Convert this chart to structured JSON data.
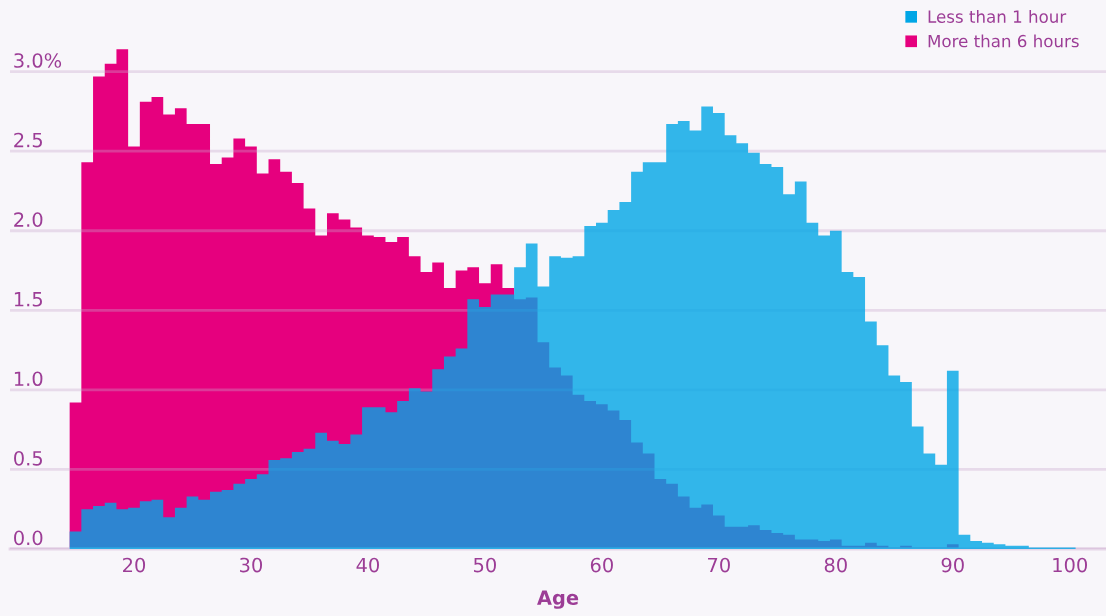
{
  "chart_data": {
    "type": "histogram",
    "xlabel": "Age",
    "bins": [
      14.5,
      15.5,
      16.5,
      17.5,
      18.5,
      19.5,
      20.5,
      21.5,
      22.5,
      23.5,
      24.5,
      25.5,
      26.5,
      27.5,
      28.5,
      29.5,
      30.5,
      31.5,
      32.5,
      33.5,
      34.5,
      35.5,
      36.5,
      37.5,
      38.5,
      39.5,
      40.5,
      41.5,
      42.5,
      43.5,
      44.5,
      45.5,
      46.5,
      47.5,
      48.5,
      49.5,
      50.5,
      51.5,
      52.5,
      53.5,
      54.5,
      55.5,
      56.5,
      57.5,
      58.5,
      59.5,
      60.5,
      61.5,
      62.5,
      63.5,
      64.5,
      65.5,
      66.5,
      67.5,
      68.5,
      69.5,
      70.5,
      71.5,
      72.5,
      73.5,
      74.5,
      75.5,
      76.5,
      77.5,
      78.5,
      79.5,
      80.5,
      81.5,
      82.5,
      83.5,
      84.5,
      85.5,
      86.5,
      87.5,
      88.5,
      89.5,
      90.5,
      91.5,
      92.5,
      93.5,
      94.5,
      95.5,
      96.5,
      97.5,
      98.5,
      99.5,
      100.5
    ],
    "series": [
      {
        "name": "Less than 1 hour",
        "color": "#00a6e6",
        "values": [
          0.11,
          0.25,
          0.27,
          0.29,
          0.25,
          0.26,
          0.3,
          0.31,
          0.2,
          0.26,
          0.33,
          0.31,
          0.36,
          0.37,
          0.41,
          0.44,
          0.47,
          0.56,
          0.57,
          0.61,
          0.63,
          0.73,
          0.68,
          0.66,
          0.72,
          0.89,
          0.89,
          0.86,
          0.93,
          1.01,
          0.99,
          1.13,
          1.21,
          1.26,
          1.57,
          1.52,
          1.6,
          1.6,
          1.77,
          1.92,
          1.65,
          1.84,
          1.83,
          1.84,
          2.03,
          2.05,
          2.13,
          2.18,
          2.37,
          2.43,
          2.43,
          2.67,
          2.69,
          2.63,
          2.78,
          2.74,
          2.6,
          2.55,
          2.49,
          2.42,
          2.4,
          2.23,
          2.31,
          2.05,
          1.97,
          2.0,
          1.74,
          1.71,
          1.43,
          1.28,
          1.09,
          1.05,
          0.77,
          0.6,
          0.53,
          1.12,
          0.09,
          0.05,
          0.04,
          0.03,
          0.02,
          0.02,
          0.01,
          0.01,
          0.01,
          0.01
        ]
      },
      {
        "name": "More than 6 hours",
        "color": "#e6007e",
        "values": [
          0.92,
          2.43,
          2.97,
          3.05,
          3.14,
          2.53,
          2.81,
          2.84,
          2.73,
          2.77,
          2.67,
          2.67,
          2.42,
          2.46,
          2.58,
          2.53,
          2.36,
          2.45,
          2.37,
          2.3,
          2.14,
          1.97,
          2.11,
          2.07,
          2.02,
          1.97,
          1.96,
          1.93,
          1.96,
          1.84,
          1.74,
          1.8,
          1.64,
          1.75,
          1.77,
          1.67,
          1.79,
          1.64,
          1.57,
          1.58,
          1.3,
          1.14,
          1.09,
          0.97,
          0.93,
          0.91,
          0.87,
          0.81,
          0.67,
          0.6,
          0.44,
          0.41,
          0.33,
          0.26,
          0.28,
          0.21,
          0.14,
          0.14,
          0.15,
          0.12,
          0.1,
          0.09,
          0.06,
          0.06,
          0.05,
          0.06,
          0.02,
          0.02,
          0.04,
          0.02,
          0.01,
          0.02,
          0.01,
          0.01,
          0.01,
          0.03,
          0,
          0,
          0,
          0,
          0,
          0,
          0,
          0,
          0,
          0
        ]
      }
    ],
    "xlim": [
      9.4,
      103.1
    ],
    "ylim": [
      0,
      3.45
    ],
    "xticks": [
      20,
      30,
      40,
      50,
      60,
      70,
      80,
      90,
      100
    ],
    "yticks": [
      {
        "value": 0,
        "label": "0.0"
      },
      {
        "value": 0.5,
        "label": "0.5"
      },
      {
        "value": 1,
        "label": "1.0"
      },
      {
        "value": 1.5,
        "label": "1.5"
      },
      {
        "value": 2,
        "label": "2.0"
      },
      {
        "value": 2.5,
        "label": "2.5"
      },
      {
        "value": 3,
        "label": "3.0%"
      }
    ],
    "grid": "y",
    "legend": "top right"
  }
}
